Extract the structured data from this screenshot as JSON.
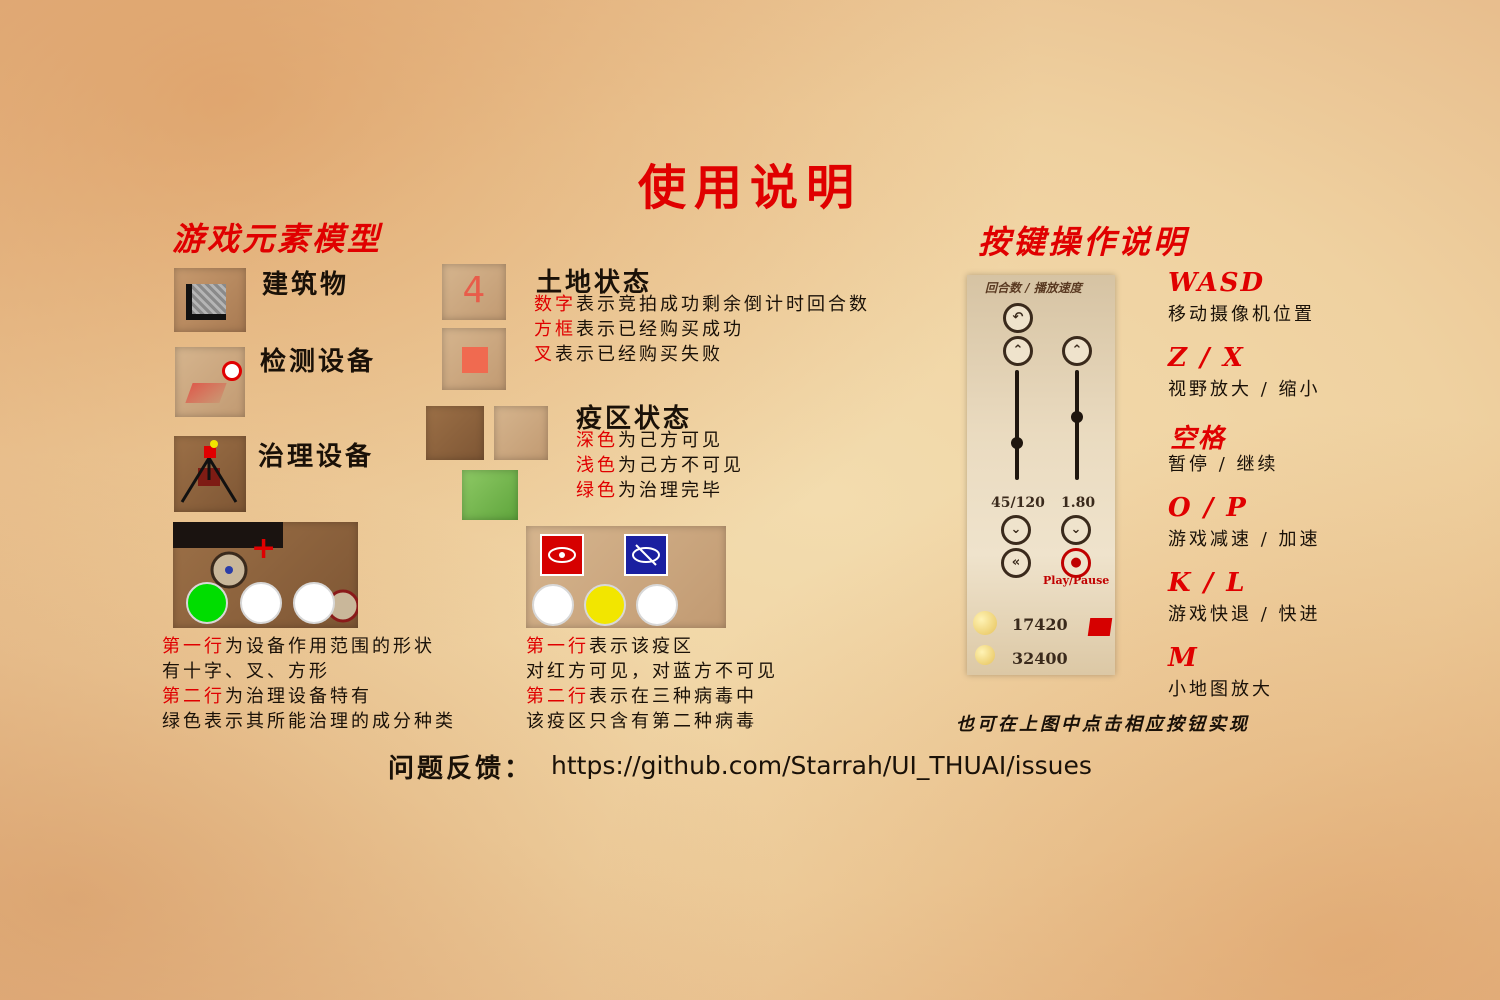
{
  "title": "使用说明",
  "left": {
    "heading": "游戏元素模型",
    "building": "建筑物",
    "detector": "检测设备",
    "healer": "治理设备",
    "land": {
      "heading": "土地状态",
      "tile_number": "4",
      "l1_key": "数字",
      "l1_rest": "表示竞拍成功剩余倒计时回合数",
      "l2_key": "方框",
      "l2_rest": "表示已经购买成功",
      "l3_key": "叉",
      "l3_rest": "表示已经购买失败"
    },
    "zone": {
      "heading": "疫区状态",
      "l1_key": "深色",
      "l1_rest": "为己方可见",
      "l2_key": "浅色",
      "l2_rest": "为己方不可见",
      "l3_key": "绿色",
      "l3_rest": "为治理完毕"
    },
    "device_note": {
      "l1_key": "第一行",
      "l1_rest": "为设备作用范围的形状",
      "l2": "有十字、叉、方形",
      "l3_key": "第二行",
      "l3_rest": "为治理设备特有",
      "l4": "绿色表示其所能治理的成分种类"
    },
    "zone_note": {
      "l1_key": "第一行",
      "l1_rest": "表示该疫区",
      "l2": "对红方可见，对蓝方不可见",
      "l3_key": "第二行",
      "l3_rest": "表示在三种病毒中",
      "l4": "该疫区只含有第二种病毒"
    },
    "device_circles": [
      "#00dd00",
      "#ffffff",
      "#ffffff"
    ],
    "zone_circles": [
      "#ffffff",
      "#f2e600",
      "#ffffff"
    ]
  },
  "right": {
    "heading": "按键操作说明",
    "panel": {
      "header": "回合数 / 播放速度",
      "turn": "45/120",
      "speed": "1.80",
      "play_pause": "Play/Pause",
      "score1": "17420",
      "score2": "32400"
    },
    "keys": [
      {
        "key": "WASD",
        "desc": "移动摄像机位置"
      },
      {
        "key": "Z / X",
        "desc": "视野放大 / 缩小"
      },
      {
        "key": "空格",
        "desc": "暂停 / 继续"
      },
      {
        "key": "O / P",
        "desc": "游戏减速 / 加速"
      },
      {
        "key": "K / L",
        "desc": "游戏快退 / 快进"
      },
      {
        "key": "M",
        "desc": "小地图放大"
      }
    ],
    "note": "也可在上图中点击相应按钮实现"
  },
  "feedback": {
    "label": "问题反馈：",
    "url": "https://github.com/Starrah/UI_THUAI/issues"
  },
  "colors": {
    "accent": "#e00000",
    "ink": "#1a1108",
    "red_flag": "#d60000",
    "blue_flag": "#1a1fa0"
  }
}
